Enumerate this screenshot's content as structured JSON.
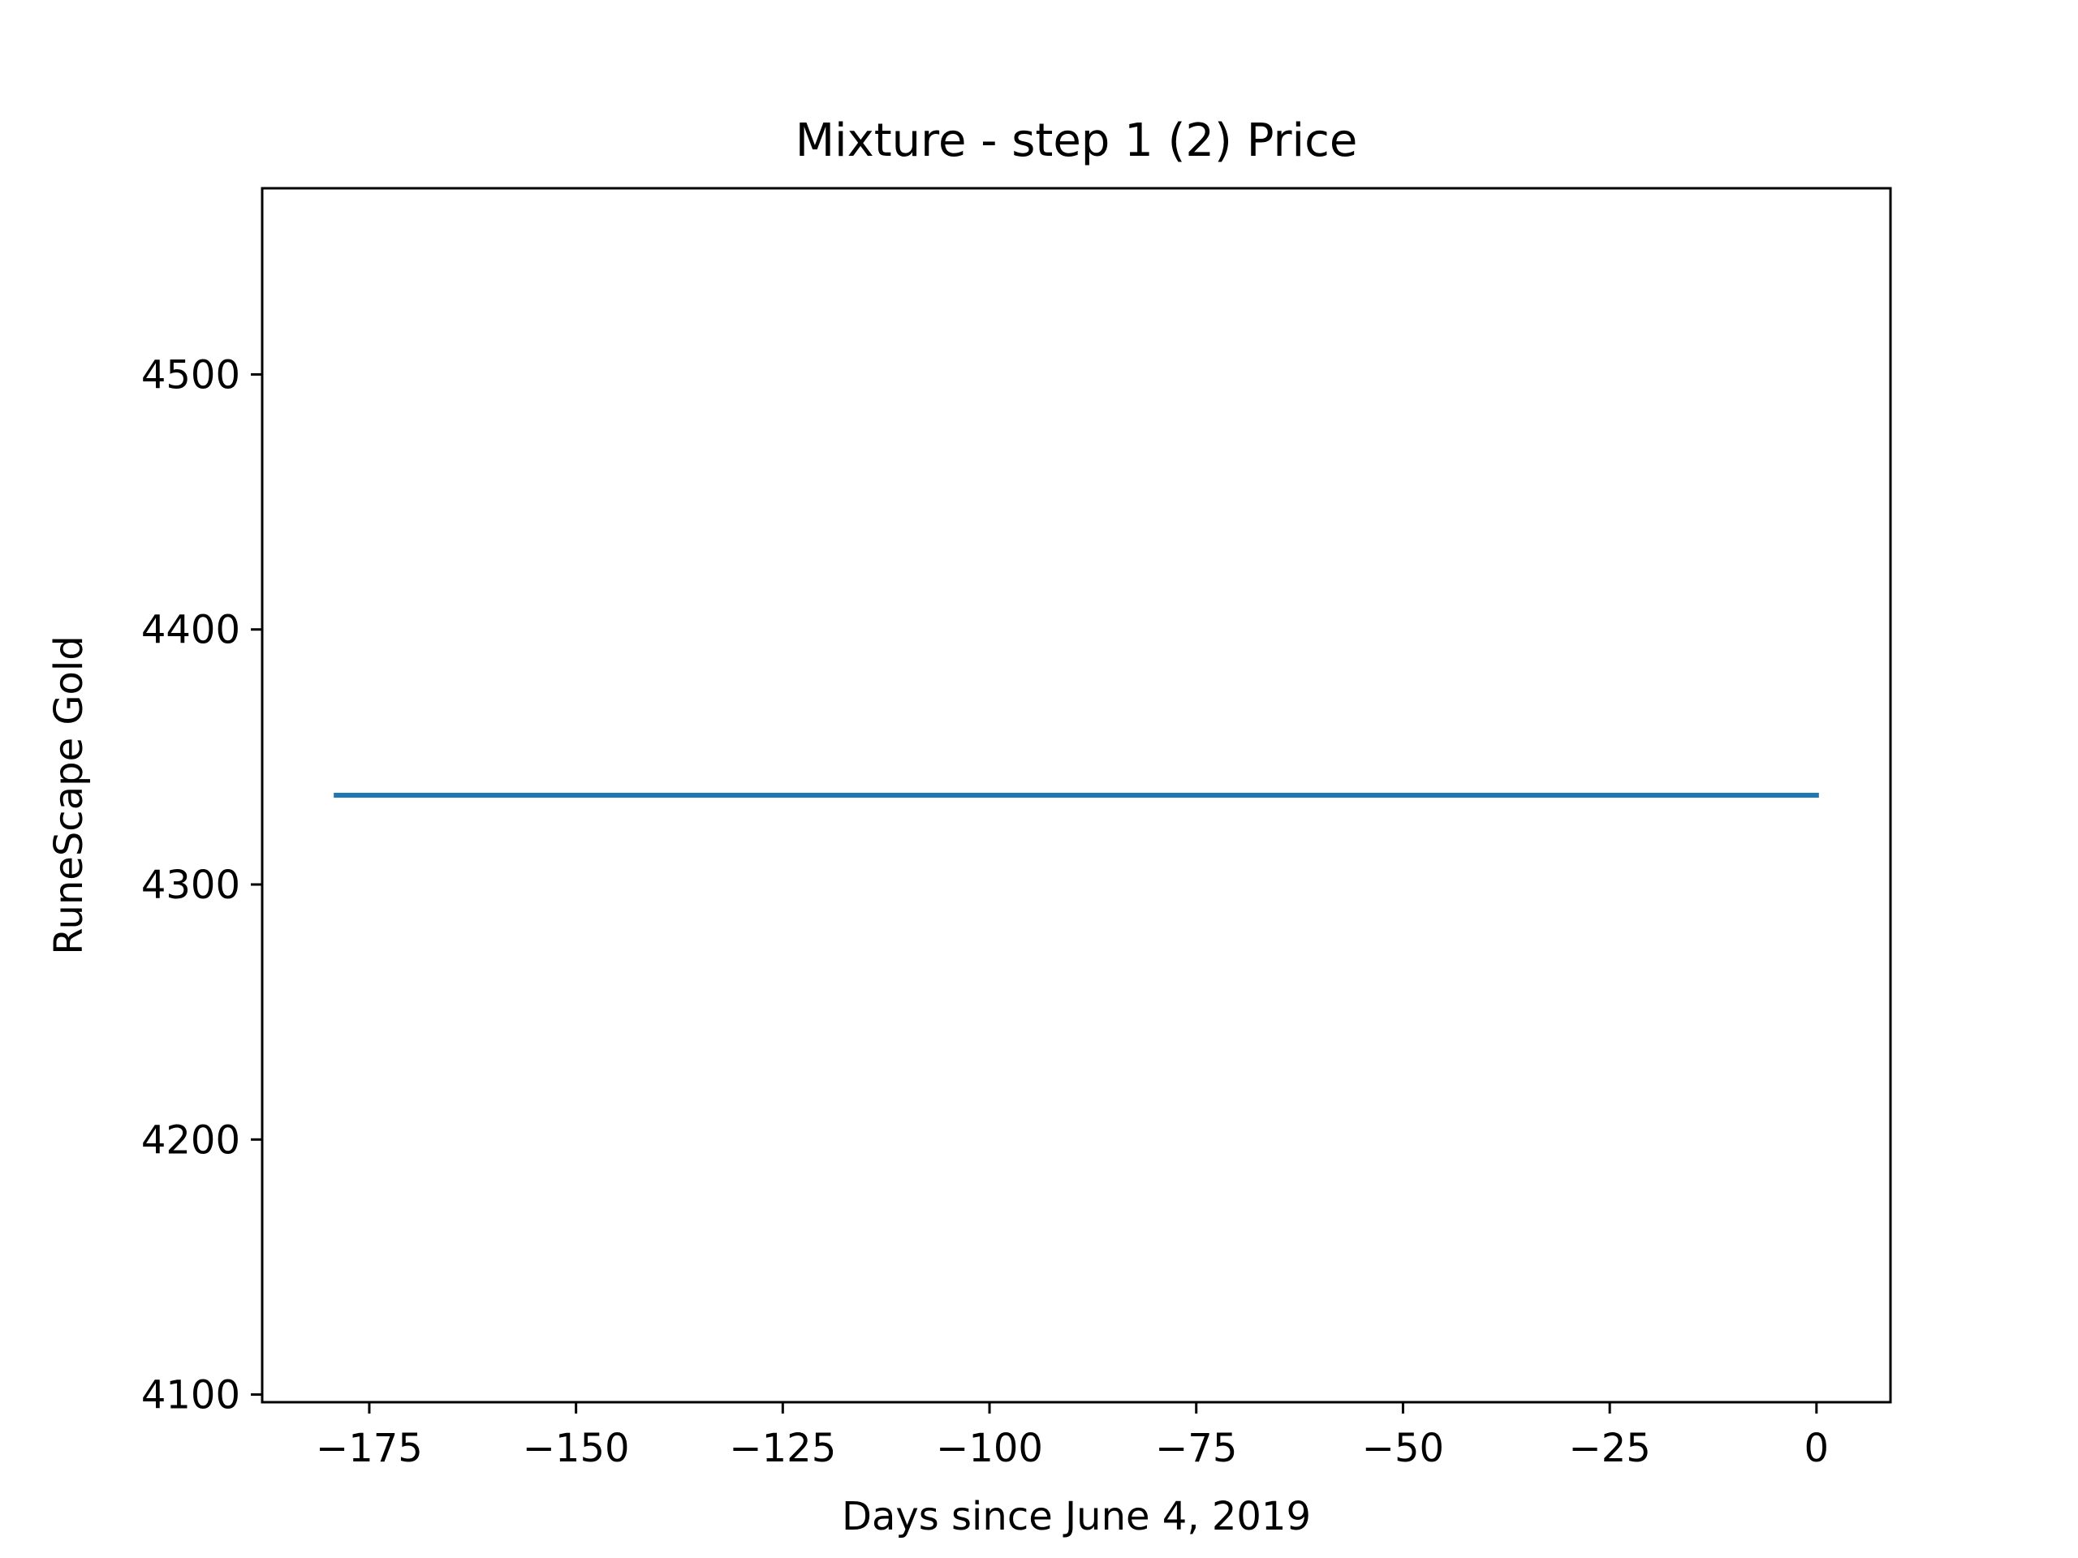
{
  "chart_data": {
    "type": "line",
    "title": "Mixture - step 1 (2) Price",
    "xlabel": "Days since June 4, 2019",
    "ylabel": "RuneScape Gold",
    "xlim": [
      -187.95,
      8.95
    ],
    "ylim": [
      4097,
      4573
    ],
    "x_ticks": [
      -175,
      -150,
      -125,
      -100,
      -75,
      -50,
      -25,
      0
    ],
    "x_tick_labels": [
      "−175",
      "−150",
      "−125",
      "−100",
      "−75",
      "−50",
      "−25",
      "0"
    ],
    "y_ticks": [
      4100,
      4200,
      4300,
      4400,
      4500
    ],
    "y_tick_labels": [
      "4100",
      "4200",
      "4300",
      "4400",
      "4500"
    ],
    "grid": false,
    "series": [
      {
        "name": "price",
        "color": "#1f77b4",
        "x": [
          -179,
          0
        ],
        "y": [
          4335,
          4335
        ]
      }
    ]
  }
}
